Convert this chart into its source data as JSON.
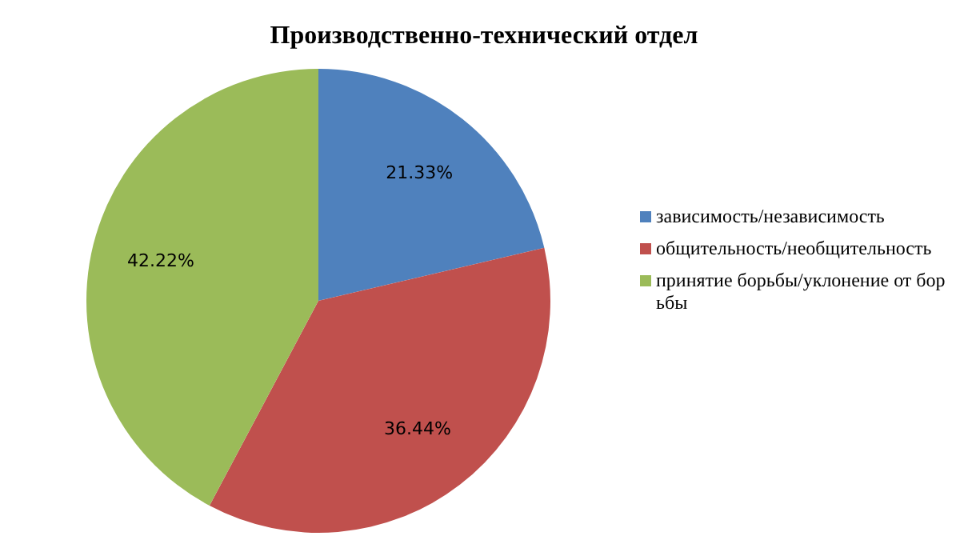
{
  "chart_data": {
    "type": "pie",
    "title": "Производственно-технический отдел",
    "categories": [
      "зависимость/независимость",
      "общительность/необщительность",
      "принятие борьбы/уклонение от борьбы"
    ],
    "values": [
      21.33,
      36.44,
      42.22
    ],
    "colors": [
      "#4f81bd",
      "#c0504d",
      "#9bbb59"
    ],
    "value_labels": [
      "21.33%",
      "36.44%",
      "42.22%"
    ],
    "legend": "right"
  }
}
